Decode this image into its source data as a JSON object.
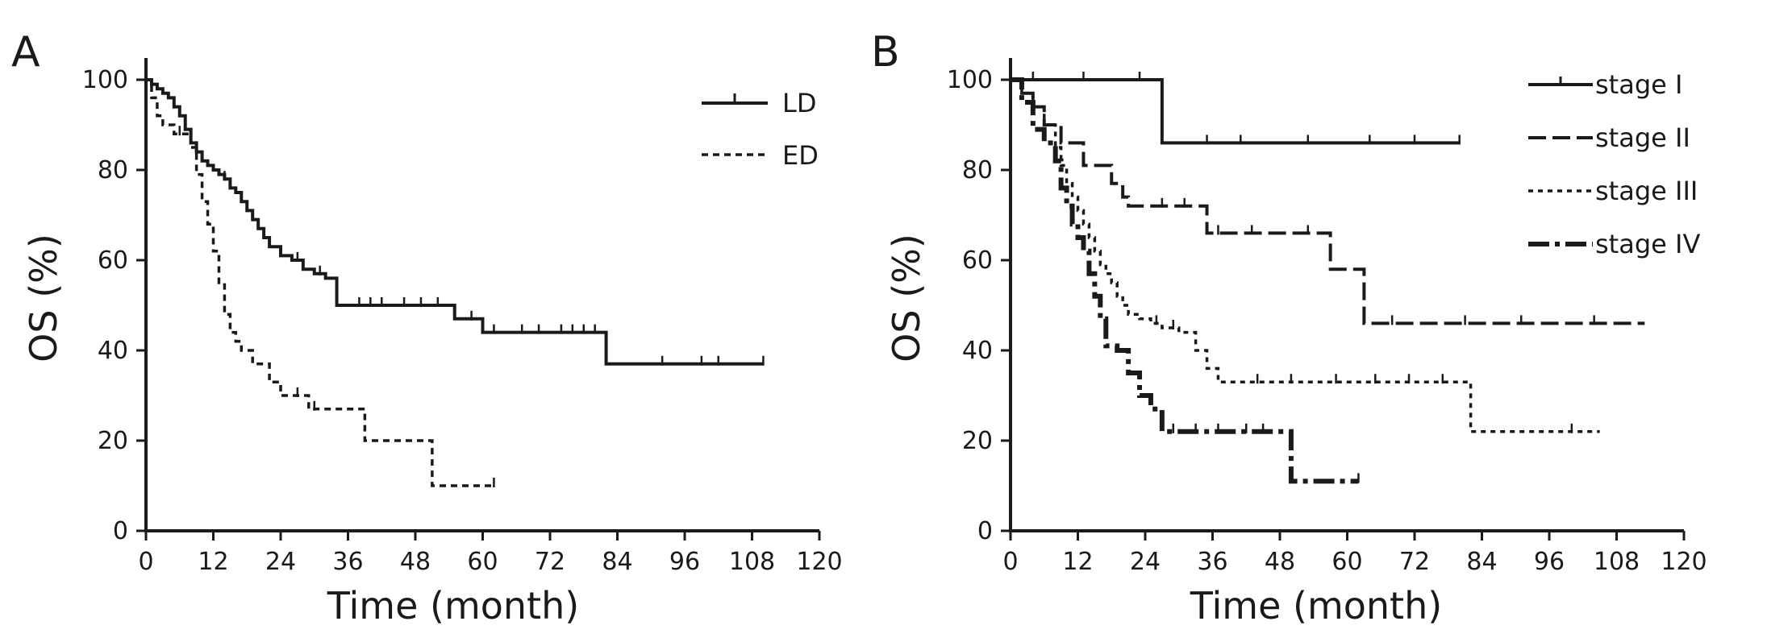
{
  "chart_data": [
    {
      "type": "line",
      "subtype": "kaplan-meier",
      "panel_label": "A",
      "xlabel": "Time (month)",
      "ylabel": "OS (%)",
      "xlim": [
        0,
        120
      ],
      "ylim": [
        0,
        100
      ],
      "xticks": [
        0,
        12,
        24,
        36,
        48,
        60,
        72,
        84,
        96,
        108,
        120
      ],
      "yticks": [
        0,
        20,
        40,
        60,
        80,
        100
      ],
      "grid": false,
      "legend": "top-right",
      "series": [
        {
          "name": "LD",
          "style": "solid",
          "x": [
            0,
            1,
            2,
            3,
            4,
            5,
            6,
            7,
            8,
            9,
            10,
            11,
            12,
            13,
            14,
            15,
            16,
            17,
            18,
            19,
            20,
            21,
            22,
            24,
            26,
            28,
            30,
            32,
            34,
            55,
            60,
            82,
            110
          ],
          "y": [
            100,
            99,
            98,
            97,
            96,
            94,
            92,
            89,
            86,
            84,
            82,
            81,
            80,
            79,
            78,
            76,
            75,
            73,
            71,
            69,
            67,
            65,
            63,
            61,
            60,
            58,
            57,
            56,
            50,
            47,
            44,
            37,
            37
          ],
          "censored_x": [
            5,
            7,
            14,
            19,
            27,
            31,
            38,
            40,
            42,
            46,
            49,
            52,
            58,
            62,
            67,
            70,
            74,
            76,
            78,
            80,
            92,
            99,
            102,
            110
          ]
        },
        {
          "name": "ED",
          "style": "dashed",
          "x": [
            0,
            1,
            2,
            3,
            5,
            8,
            9,
            10,
            11,
            12,
            13,
            14,
            15,
            16,
            17,
            19,
            22,
            24,
            29,
            39,
            51,
            62
          ],
          "y": [
            100,
            96,
            92,
            90,
            88,
            85,
            79,
            73,
            68,
            62,
            55,
            48,
            44,
            42,
            40,
            37,
            33,
            30,
            27,
            20,
            10,
            10
          ],
          "censored_x": [
            6,
            27,
            30,
            62
          ]
        }
      ]
    },
    {
      "type": "line",
      "subtype": "kaplan-meier",
      "panel_label": "B",
      "xlabel": "Time (month)",
      "ylabel": "OS (%)",
      "xlim": [
        0,
        120
      ],
      "ylim": [
        0,
        100
      ],
      "xticks": [
        0,
        12,
        24,
        36,
        48,
        60,
        72,
        84,
        96,
        108,
        120
      ],
      "yticks": [
        0,
        20,
        40,
        60,
        80,
        100
      ],
      "grid": false,
      "legend": "top-right",
      "series": [
        {
          "name": "stage I",
          "style": "solid",
          "x": [
            0,
            27,
            80
          ],
          "y": [
            100,
            86,
            86
          ],
          "censored_x": [
            4,
            13,
            23,
            35,
            41,
            53,
            64,
            72,
            80
          ]
        },
        {
          "name": "stage II",
          "style": "long-dash",
          "x": [
            0,
            2,
            4,
            6,
            9,
            13,
            18,
            20,
            21,
            35,
            57,
            63,
            113
          ],
          "y": [
            100,
            97,
            94,
            90,
            86,
            81,
            77,
            74,
            72,
            66,
            58,
            46,
            46
          ],
          "censored_x": [
            27,
            31,
            37,
            43,
            53,
            68,
            81,
            91,
            104
          ]
        },
        {
          "name": "stage III",
          "style": "dotted",
          "x": [
            0,
            2,
            4,
            6,
            8,
            9,
            10,
            11,
            12,
            13,
            14,
            15,
            16,
            17,
            18,
            19,
            20,
            21,
            23,
            25,
            27,
            30,
            33,
            35,
            37,
            82,
            105
          ],
          "y": [
            100,
            97,
            94,
            90,
            85,
            81,
            77,
            74,
            71,
            68,
            65,
            62,
            59,
            57,
            55,
            52,
            50,
            48,
            47,
            46,
            45,
            44,
            40,
            36,
            33,
            22,
            22
          ],
          "censored_x": [
            26,
            29,
            44,
            50,
            58,
            65,
            71,
            77,
            100
          ]
        },
        {
          "name": "stage IV",
          "style": "dash-dot",
          "x": [
            0,
            2,
            4,
            6,
            8,
            9,
            10,
            11,
            12,
            13,
            14,
            15,
            16,
            17,
            19,
            21,
            23,
            25,
            27,
            50,
            62
          ],
          "y": [
            100,
            95,
            89,
            86,
            82,
            76,
            72,
            68,
            65,
            62,
            57,
            52,
            47,
            41,
            40,
            35,
            30,
            27,
            22,
            11,
            11
          ],
          "censored_x": [
            29,
            33,
            37,
            42,
            45,
            62
          ]
        }
      ]
    }
  ]
}
